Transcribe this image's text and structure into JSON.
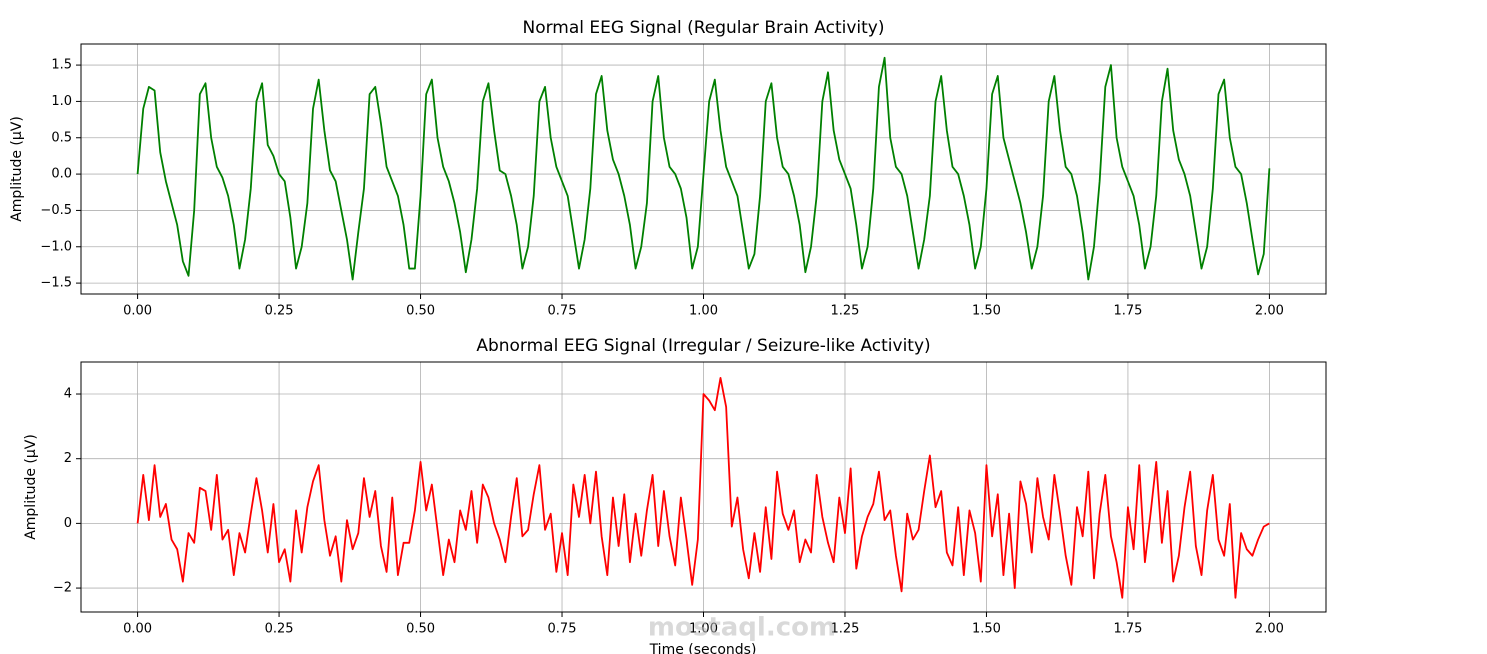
{
  "watermark": "mostaql.com",
  "chart_data": [
    {
      "type": "line",
      "title": "Normal EEG Signal (Regular Brain Activity)",
      "ylabel": "Amplitude (µV)",
      "color": "#008000",
      "grid": true,
      "xlim": [
        -0.1,
        2.1
      ],
      "ylim": [
        -1.65,
        1.79
      ],
      "xticks": [
        {
          "value": 0,
          "label": "0.00"
        },
        {
          "value": 0.25,
          "label": "0.25"
        },
        {
          "value": 0.5,
          "label": "0.50"
        },
        {
          "value": 0.75,
          "label": "0.75"
        },
        {
          "value": 1,
          "label": "1.00"
        },
        {
          "value": 1.25,
          "label": "1.25"
        },
        {
          "value": 1.5,
          "label": "1.50"
        },
        {
          "value": 1.75,
          "label": "1.75"
        },
        {
          "value": 2,
          "label": "2.00"
        }
      ],
      "yticks": [
        {
          "value": -1.5,
          "label": "−1.5"
        },
        {
          "value": -1,
          "label": "−1.0"
        },
        {
          "value": -0.5,
          "label": "−0.5"
        },
        {
          "value": 0,
          "label": "0.0"
        },
        0.5,
        {
          "value": 1,
          "label": "1.0"
        },
        1.5
      ],
      "x": [
        0,
        0.01,
        0.02,
        0.03,
        0.04,
        0.05,
        0.06,
        0.07,
        0.08,
        0.09,
        0.1,
        0.11,
        0.12,
        0.13,
        0.14,
        0.15,
        0.16,
        0.17,
        0.18,
        0.19,
        0.2,
        0.21,
        0.22,
        0.23,
        0.24,
        0.25,
        0.26,
        0.27,
        0.28,
        0.29,
        0.3,
        0.31,
        0.32,
        0.33,
        0.34,
        0.35,
        0.36,
        0.37,
        0.38,
        0.39,
        0.4,
        0.41,
        0.42,
        0.43,
        0.44,
        0.45,
        0.46,
        0.47,
        0.48,
        0.49,
        0.5,
        0.51,
        0.52,
        0.53,
        0.54,
        0.55,
        0.56,
        0.57,
        0.58,
        0.59,
        0.6,
        0.61,
        0.62,
        0.63,
        0.64,
        0.65,
        0.66,
        0.67,
        0.68,
        0.69,
        0.7,
        0.71,
        0.72,
        0.73,
        0.74,
        0.75,
        0.76,
        0.77,
        0.78,
        0.79,
        0.8,
        0.81,
        0.82,
        0.83,
        0.84,
        0.85,
        0.86,
        0.87,
        0.88,
        0.89,
        0.9,
        0.91,
        0.92,
        0.93,
        0.94,
        0.95,
        0.96,
        0.97,
        0.98,
        0.99,
        1,
        1.01,
        1.02,
        1.03,
        1.04,
        1.05,
        1.06,
        1.07,
        1.08,
        1.09,
        1.1,
        1.11,
        1.12,
        1.13,
        1.14,
        1.15,
        1.16,
        1.17,
        1.18,
        1.19,
        1.2,
        1.21,
        1.22,
        1.23,
        1.24,
        1.25,
        1.26,
        1.27,
        1.28,
        1.29,
        1.3,
        1.31,
        1.32,
        1.33,
        1.34,
        1.35,
        1.36,
        1.37,
        1.38,
        1.39,
        1.4,
        1.41,
        1.42,
        1.43,
        1.44,
        1.45,
        1.46,
        1.47,
        1.48,
        1.49,
        1.5,
        1.51,
        1.52,
        1.53,
        1.54,
        1.55,
        1.56,
        1.57,
        1.58,
        1.59,
        1.6,
        1.61,
        1.62,
        1.63,
        1.64,
        1.65,
        1.66,
        1.67,
        1.68,
        1.69,
        1.7,
        1.71,
        1.72,
        1.73,
        1.74,
        1.75,
        1.76,
        1.77,
        1.78,
        1.79,
        1.8,
        1.81,
        1.82,
        1.83,
        1.84,
        1.85,
        1.86,
        1.87,
        1.88,
        1.89,
        1.9,
        1.91,
        1.92,
        1.93,
        1.94,
        1.95,
        1.96,
        1.97,
        1.98,
        1.99,
        2
      ],
      "values": [
        0.0,
        0.9,
        1.2,
        1.15,
        0.3,
        -0.1,
        -0.4,
        -0.7,
        -1.2,
        -1.4,
        -0.5,
        1.1,
        1.25,
        0.5,
        0.1,
        -0.05,
        -0.3,
        -0.7,
        -1.3,
        -0.9,
        -0.2,
        1.0,
        1.25,
        0.4,
        0.25,
        0.0,
        -0.1,
        -0.6,
        -1.3,
        -1.0,
        -0.4,
        0.9,
        1.3,
        0.6,
        0.05,
        -0.1,
        -0.5,
        -0.9,
        -1.45,
        -0.8,
        -0.2,
        1.1,
        1.2,
        0.7,
        0.1,
        -0.1,
        -0.3,
        -0.7,
        -1.3,
        -1.3,
        -0.3,
        1.1,
        1.3,
        0.5,
        0.1,
        -0.1,
        -0.4,
        -0.8,
        -1.35,
        -0.9,
        -0.2,
        1.0,
        1.25,
        0.6,
        0.05,
        0.0,
        -0.3,
        -0.7,
        -1.3,
        -1.0,
        -0.3,
        1.0,
        1.2,
        0.5,
        0.1,
        -0.1,
        -0.3,
        -0.8,
        -1.3,
        -0.9,
        -0.2,
        1.1,
        1.35,
        0.6,
        0.2,
        0.0,
        -0.3,
        -0.7,
        -1.3,
        -1.0,
        -0.4,
        1.0,
        1.35,
        0.5,
        0.1,
        0.0,
        -0.2,
        -0.6,
        -1.3,
        -1.0,
        0.0,
        1.0,
        1.3,
        0.6,
        0.1,
        -0.1,
        -0.3,
        -0.8,
        -1.3,
        -1.1,
        -0.3,
        1.0,
        1.25,
        0.5,
        0.1,
        0.0,
        -0.3,
        -0.7,
        -1.35,
        -1.0,
        -0.3,
        1.0,
        1.4,
        0.6,
        0.2,
        0.0,
        -0.2,
        -0.7,
        -1.3,
        -1.0,
        -0.2,
        1.2,
        1.6,
        0.5,
        0.1,
        0.0,
        -0.3,
        -0.8,
        -1.3,
        -0.9,
        -0.3,
        1.0,
        1.35,
        0.6,
        0.1,
        0.0,
        -0.3,
        -0.7,
        -1.3,
        -1.0,
        -0.2,
        1.1,
        1.35,
        0.5,
        0.2,
        -0.1,
        -0.4,
        -0.8,
        -1.3,
        -1.0,
        -0.3,
        1.0,
        1.35,
        0.6,
        0.1,
        0.0,
        -0.3,
        -0.8,
        -1.45,
        -1.0,
        -0.1,
        1.2,
        1.5,
        0.5,
        0.1,
        -0.1,
        -0.3,
        -0.7,
        -1.3,
        -1.0,
        -0.3,
        1.0,
        1.45,
        0.6,
        0.2,
        0.0,
        -0.3,
        -0.8,
        -1.3,
        -1.0,
        -0.2,
        1.1,
        1.3,
        0.5,
        0.1,
        0.0,
        -0.4,
        -0.9,
        -1.38,
        -1.1,
        0.08
      ]
    },
    {
      "type": "line",
      "title": "Abnormal EEG Signal (Irregular / Seizure-like Activity)",
      "ylabel": "Amplitude (µV)",
      "xlabel": "Time (seconds)",
      "color": "#ff0000",
      "grid": true,
      "xlim": [
        -0.1,
        2.1
      ],
      "ylim": [
        -2.74,
        4.99
      ],
      "xticks": [
        {
          "value": 0,
          "label": "0.00"
        },
        {
          "value": 0.25,
          "label": "0.25"
        },
        {
          "value": 0.5,
          "label": "0.50"
        },
        {
          "value": 0.75,
          "label": "0.75"
        },
        {
          "value": 1,
          "label": "1.00"
        },
        {
          "value": 1.25,
          "label": "1.25"
        },
        {
          "value": 1.5,
          "label": "1.50"
        },
        {
          "value": 1.75,
          "label": "1.75"
        },
        {
          "value": 2,
          "label": "2.00"
        }
      ],
      "yticks": [
        {
          "value": -2,
          "label": "−2"
        },
        0,
        2,
        4
      ],
      "x": [
        0,
        0.01,
        0.02,
        0.03,
        0.04,
        0.05,
        0.06,
        0.07,
        0.08,
        0.09,
        0.1,
        0.11,
        0.12,
        0.13,
        0.14,
        0.15,
        0.16,
        0.17,
        0.18,
        0.19,
        0.2,
        0.21,
        0.22,
        0.23,
        0.24,
        0.25,
        0.26,
        0.27,
        0.28,
        0.29,
        0.3,
        0.31,
        0.32,
        0.33,
        0.34,
        0.35,
        0.36,
        0.37,
        0.38,
        0.39,
        0.4,
        0.41,
        0.42,
        0.43,
        0.44,
        0.45,
        0.46,
        0.47,
        0.48,
        0.49,
        0.5,
        0.51,
        0.52,
        0.53,
        0.54,
        0.55,
        0.56,
        0.57,
        0.58,
        0.59,
        0.6,
        0.61,
        0.62,
        0.63,
        0.64,
        0.65,
        0.66,
        0.67,
        0.68,
        0.69,
        0.7,
        0.71,
        0.72,
        0.73,
        0.74,
        0.75,
        0.76,
        0.77,
        0.78,
        0.79,
        0.8,
        0.81,
        0.82,
        0.83,
        0.84,
        0.85,
        0.86,
        0.87,
        0.88,
        0.89,
        0.9,
        0.91,
        0.92,
        0.93,
        0.94,
        0.95,
        0.96,
        0.97,
        0.98,
        0.99,
        1,
        1.01,
        1.02,
        1.03,
        1.04,
        1.05,
        1.06,
        1.07,
        1.08,
        1.09,
        1.1,
        1.11,
        1.12,
        1.13,
        1.14,
        1.15,
        1.16,
        1.17,
        1.18,
        1.19,
        1.2,
        1.21,
        1.22,
        1.23,
        1.24,
        1.25,
        1.26,
        1.27,
        1.28,
        1.29,
        1.3,
        1.31,
        1.32,
        1.33,
        1.34,
        1.35,
        1.36,
        1.37,
        1.38,
        1.39,
        1.4,
        1.41,
        1.42,
        1.43,
        1.44,
        1.45,
        1.46,
        1.47,
        1.48,
        1.49,
        1.5,
        1.51,
        1.52,
        1.53,
        1.54,
        1.55,
        1.56,
        1.57,
        1.58,
        1.59,
        1.6,
        1.61,
        1.62,
        1.63,
        1.64,
        1.65,
        1.66,
        1.67,
        1.68,
        1.69,
        1.7,
        1.71,
        1.72,
        1.73,
        1.74,
        1.75,
        1.76,
        1.77,
        1.78,
        1.79,
        1.8,
        1.81,
        1.82,
        1.83,
        1.84,
        1.85,
        1.86,
        1.87,
        1.88,
        1.89,
        1.9,
        1.91,
        1.92,
        1.93,
        1.94,
        1.95,
        1.96,
        1.97,
        1.98,
        1.99,
        2
      ],
      "values": [
        0.0,
        1.5,
        0.1,
        1.8,
        0.2,
        0.6,
        -0.5,
        -0.8,
        -1.8,
        -0.3,
        -0.6,
        1.1,
        1.0,
        -0.2,
        1.5,
        -0.5,
        -0.2,
        -1.6,
        -0.3,
        -0.9,
        0.3,
        1.4,
        0.4,
        -0.9,
        0.6,
        -1.2,
        -0.8,
        -1.8,
        0.4,
        -0.9,
        0.5,
        1.3,
        1.8,
        0.1,
        -1.0,
        -0.4,
        -1.8,
        0.1,
        -0.8,
        -0.3,
        1.4,
        0.2,
        1.0,
        -0.7,
        -1.5,
        0.8,
        -1.6,
        -0.6,
        -0.6,
        0.4,
        1.9,
        0.4,
        1.2,
        -0.2,
        -1.6,
        -0.5,
        -1.2,
        0.4,
        -0.2,
        1.0,
        -0.6,
        1.2,
        0.8,
        0.0,
        -0.5,
        -1.2,
        0.2,
        1.4,
        -0.4,
        -0.2,
        0.9,
        1.8,
        -0.2,
        0.3,
        -1.5,
        -0.3,
        -1.6,
        1.2,
        0.2,
        1.5,
        0.0,
        1.6,
        -0.4,
        -1.6,
        0.8,
        -0.7,
        0.9,
        -1.2,
        0.3,
        -1.0,
        0.4,
        1.5,
        -0.7,
        1.0,
        -0.4,
        -1.3,
        0.8,
        -0.5,
        -1.9,
        -0.5,
        4.0,
        3.8,
        3.5,
        4.5,
        3.6,
        -0.1,
        0.8,
        -0.8,
        -1.7,
        -0.3,
        -1.5,
        0.5,
        -1.1,
        1.6,
        0.3,
        -0.2,
        0.4,
        -1.2,
        -0.5,
        -0.9,
        1.5,
        0.2,
        -0.6,
        -1.2,
        0.8,
        -0.3,
        1.7,
        -1.4,
        -0.4,
        0.2,
        0.6,
        1.6,
        0.1,
        0.4,
        -1.0,
        -2.1,
        0.3,
        -0.5,
        -0.2,
        1.0,
        2.1,
        0.5,
        1.0,
        -0.9,
        -1.3,
        0.5,
        -1.6,
        0.4,
        -0.3,
        -1.8,
        1.8,
        -0.4,
        0.9,
        -1.6,
        0.3,
        -2.0,
        1.3,
        0.6,
        -0.9,
        1.4,
        0.2,
        -0.5,
        1.5,
        0.3,
        -1.0,
        -1.9,
        0.5,
        -0.4,
        1.6,
        -1.7,
        0.3,
        1.5,
        -0.4,
        -1.2,
        -2.3,
        0.5,
        -0.8,
        1.8,
        -1.2,
        0.3,
        1.9,
        -0.6,
        1.0,
        -1.8,
        -1.0,
        0.5,
        1.6,
        -0.7,
        -1.6,
        0.4,
        1.5,
        -0.5,
        -1.0,
        0.6,
        -2.3,
        -0.3,
        -0.8,
        -1.0,
        -0.5,
        -0.1,
        0.0
      ]
    }
  ]
}
